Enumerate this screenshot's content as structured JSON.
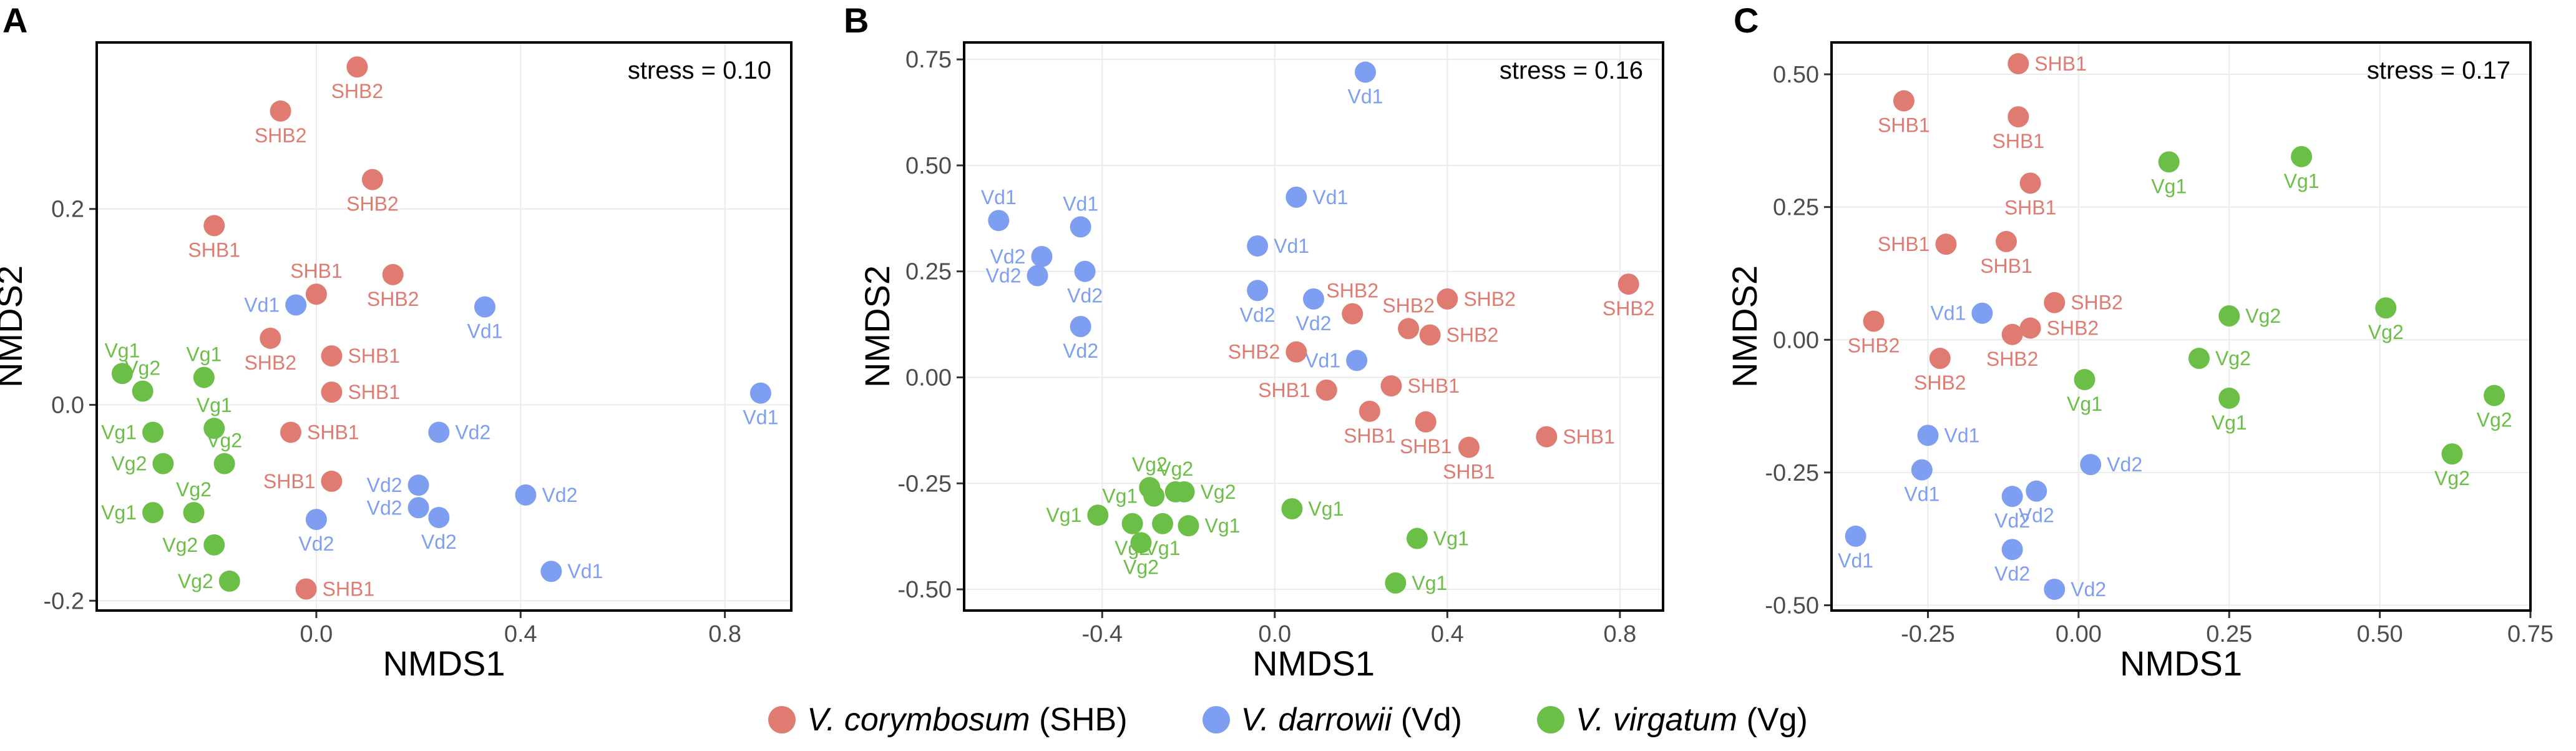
{
  "colors": {
    "SHB": "#E07B72",
    "Vd": "#7E9EF2",
    "Vg": "#6BBF47"
  },
  "legend": [
    {
      "key": "SHB",
      "species": "V. corymbosum",
      "code": "(SHB)"
    },
    {
      "key": "Vd",
      "species": "V. darrowii",
      "code": "(Vd)"
    },
    {
      "key": "Vg",
      "species": "V. virgatum",
      "code": "(Vg)"
    }
  ],
  "chart_data": [
    {
      "panel": "A",
      "type": "scatter",
      "title": "",
      "xlabel": "NMDS1",
      "ylabel": "NMDS2",
      "stress": "stress = 0.10",
      "xlim": [
        -0.43,
        0.93
      ],
      "ylim": [
        -0.21,
        0.37
      ],
      "xticks": [
        0.0,
        0.4,
        0.8
      ],
      "xtick_labels": [
        "0.0",
        "0.4",
        "0.8"
      ],
      "yticks": [
        -0.2,
        0.0,
        0.2
      ],
      "ytick_labels": [
        "-0.2",
        "0.0",
        "0.2"
      ],
      "points": [
        {
          "group": "SHB",
          "label": "SHB2",
          "x": 0.08,
          "y": 0.345,
          "lp": "below"
        },
        {
          "group": "SHB",
          "label": "SHB2",
          "x": -0.07,
          "y": 0.3,
          "lp": "below"
        },
        {
          "group": "SHB",
          "label": "SHB2",
          "x": 0.11,
          "y": 0.23,
          "lp": "below"
        },
        {
          "group": "SHB",
          "label": "SHB1",
          "x": -0.2,
          "y": 0.183,
          "lp": "below"
        },
        {
          "group": "SHB",
          "label": "SHB2",
          "x": 0.15,
          "y": 0.133,
          "lp": "below"
        },
        {
          "group": "SHB",
          "label": "SHB1",
          "x": 0.0,
          "y": 0.113,
          "lp": "above"
        },
        {
          "group": "SHB",
          "label": "SHB2",
          "x": -0.09,
          "y": 0.068,
          "lp": "below"
        },
        {
          "group": "SHB",
          "label": "SHB1",
          "x": 0.03,
          "y": 0.05,
          "lp": "right"
        },
        {
          "group": "SHB",
          "label": "SHB1",
          "x": 0.03,
          "y": 0.013,
          "lp": "right"
        },
        {
          "group": "SHB",
          "label": "SHB1",
          "x": -0.05,
          "y": -0.028,
          "lp": "right"
        },
        {
          "group": "SHB",
          "label": "SHB1",
          "x": 0.03,
          "y": -0.078,
          "lp": "left"
        },
        {
          "group": "SHB",
          "label": "SHB1",
          "x": -0.02,
          "y": -0.188,
          "lp": "right"
        },
        {
          "group": "Vd",
          "label": "Vd1",
          "x": -0.04,
          "y": 0.102,
          "lp": "left"
        },
        {
          "group": "Vd",
          "label": "Vd1",
          "x": 0.33,
          "y": 0.1,
          "lp": "below"
        },
        {
          "group": "Vd",
          "label": "Vd1",
          "x": 0.87,
          "y": 0.012,
          "lp": "below"
        },
        {
          "group": "Vd",
          "label": "Vd2",
          "x": 0.24,
          "y": -0.028,
          "lp": "right"
        },
        {
          "group": "Vd",
          "label": "Vd2",
          "x": 0.2,
          "y": -0.082,
          "lp": "left"
        },
        {
          "group": "Vd",
          "label": "Vd2",
          "x": 0.41,
          "y": -0.092,
          "lp": "right"
        },
        {
          "group": "Vd",
          "label": "Vd2",
          "x": 0.2,
          "y": -0.105,
          "lp": "left"
        },
        {
          "group": "Vd",
          "label": "Vd2",
          "x": 0.24,
          "y": -0.115,
          "lp": "below"
        },
        {
          "group": "Vd",
          "label": "Vd2",
          "x": 0.0,
          "y": -0.117,
          "lp": "below"
        },
        {
          "group": "Vd",
          "label": "Vd1",
          "x": 0.46,
          "y": -0.17,
          "lp": "right"
        },
        {
          "group": "Vg",
          "label": "Vg1",
          "x": -0.38,
          "y": 0.032,
          "lp": "above"
        },
        {
          "group": "Vg",
          "label": "Vg2",
          "x": -0.34,
          "y": 0.014,
          "lp": "above"
        },
        {
          "group": "Vg",
          "label": "Vg1",
          "x": -0.22,
          "y": 0.028,
          "lp": "above"
        },
        {
          "group": "Vg",
          "label": "Vg1",
          "x": -0.32,
          "y": -0.028,
          "lp": "left"
        },
        {
          "group": "Vg",
          "label": "Vg1",
          "x": -0.2,
          "y": -0.024,
          "lp": "above"
        },
        {
          "group": "Vg",
          "label": "Vg2",
          "x": -0.3,
          "y": -0.06,
          "lp": "left"
        },
        {
          "group": "Vg",
          "label": "Vg2",
          "x": -0.18,
          "y": -0.06,
          "lp": "above"
        },
        {
          "group": "Vg",
          "label": "Vg2",
          "x": -0.24,
          "y": -0.11,
          "lp": "above"
        },
        {
          "group": "Vg",
          "label": "Vg1",
          "x": -0.32,
          "y": -0.11,
          "lp": "left"
        },
        {
          "group": "Vg",
          "label": "Vg2",
          "x": -0.2,
          "y": -0.143,
          "lp": "left"
        },
        {
          "group": "Vg",
          "label": "Vg2",
          "x": -0.17,
          "y": -0.18,
          "lp": "left"
        }
      ]
    },
    {
      "panel": "B",
      "type": "scatter",
      "title": "",
      "xlabel": "NMDS1",
      "ylabel": "NMDS2",
      "stress": "stress = 0.16",
      "xlim": [
        -0.72,
        0.9
      ],
      "ylim": [
        -0.55,
        0.79
      ],
      "xticks": [
        -0.4,
        0.0,
        0.4,
        0.8
      ],
      "xtick_labels": [
        "-0.4",
        "0.0",
        "0.4",
        "0.8"
      ],
      "yticks": [
        -0.5,
        -0.25,
        0.0,
        0.25,
        0.5,
        0.75
      ],
      "ytick_labels": [
        "-0.50",
        "-0.25",
        "0.00",
        "0.25",
        "0.50",
        "0.75"
      ],
      "points": [
        {
          "group": "Vd",
          "label": "Vd1",
          "x": 0.21,
          "y": 0.72,
          "lp": "below"
        },
        {
          "group": "Vd",
          "label": "Vd1",
          "x": -0.64,
          "y": 0.37,
          "lp": "above"
        },
        {
          "group": "Vd",
          "label": "Vd1",
          "x": -0.45,
          "y": 0.355,
          "lp": "above"
        },
        {
          "group": "Vd",
          "label": "Vd1",
          "x": 0.05,
          "y": 0.425,
          "lp": "right"
        },
        {
          "group": "Vd",
          "label": "Vd1",
          "x": -0.04,
          "y": 0.31,
          "lp": "right"
        },
        {
          "group": "Vd",
          "label": "Vd2",
          "x": -0.54,
          "y": 0.285,
          "lp": "left"
        },
        {
          "group": "Vd",
          "label": "Vd2",
          "x": -0.55,
          "y": 0.24,
          "lp": "left"
        },
        {
          "group": "Vd",
          "label": "Vd2",
          "x": -0.44,
          "y": 0.25,
          "lp": "below"
        },
        {
          "group": "Vd",
          "label": "Vd2",
          "x": -0.04,
          "y": 0.205,
          "lp": "below"
        },
        {
          "group": "Vd",
          "label": "Vd2",
          "x": 0.09,
          "y": 0.185,
          "lp": "below"
        },
        {
          "group": "Vd",
          "label": "Vd2",
          "x": -0.45,
          "y": 0.12,
          "lp": "below"
        },
        {
          "group": "Vd",
          "label": "Vd1",
          "x": 0.19,
          "y": 0.04,
          "lp": "left"
        },
        {
          "group": "SHB",
          "label": "SHB2",
          "x": 0.82,
          "y": 0.22,
          "lp": "below"
        },
        {
          "group": "SHB",
          "label": "SHB2",
          "x": 0.18,
          "y": 0.15,
          "lp": "above"
        },
        {
          "group": "SHB",
          "label": "SHB2",
          "x": 0.4,
          "y": 0.185,
          "lp": "right"
        },
        {
          "group": "SHB",
          "label": "SHB2",
          "x": 0.31,
          "y": 0.115,
          "lp": "above"
        },
        {
          "group": "SHB",
          "label": "SHB2",
          "x": 0.36,
          "y": 0.1,
          "lp": "right"
        },
        {
          "group": "SHB",
          "label": "SHB2",
          "x": 0.05,
          "y": 0.06,
          "lp": "left"
        },
        {
          "group": "SHB",
          "label": "SHB1",
          "x": 0.12,
          "y": -0.03,
          "lp": "left"
        },
        {
          "group": "SHB",
          "label": "SHB1",
          "x": 0.27,
          "y": -0.02,
          "lp": "right"
        },
        {
          "group": "SHB",
          "label": "SHB1",
          "x": 0.22,
          "y": -0.08,
          "lp": "below"
        },
        {
          "group": "SHB",
          "label": "SHB1",
          "x": 0.35,
          "y": -0.105,
          "lp": "below"
        },
        {
          "group": "SHB",
          "label": "SHB1",
          "x": 0.45,
          "y": -0.165,
          "lp": "below"
        },
        {
          "group": "SHB",
          "label": "SHB1",
          "x": 0.63,
          "y": -0.14,
          "lp": "right"
        },
        {
          "group": "Vg",
          "label": "Vg2",
          "x": -0.29,
          "y": -0.26,
          "lp": "above"
        },
        {
          "group": "Vg",
          "label": "Vg2",
          "x": -0.21,
          "y": -0.27,
          "lp": "right"
        },
        {
          "group": "Vg",
          "label": "Vg2",
          "x": -0.23,
          "y": -0.27,
          "lp": "above"
        },
        {
          "group": "Vg",
          "label": "Vg1",
          "x": -0.28,
          "y": -0.28,
          "lp": "left"
        },
        {
          "group": "Vg",
          "label": "Vg1",
          "x": -0.41,
          "y": -0.325,
          "lp": "left"
        },
        {
          "group": "Vg",
          "label": "Vg2",
          "x": -0.33,
          "y": -0.345,
          "lp": "below"
        },
        {
          "group": "Vg",
          "label": "Vg1",
          "x": -0.26,
          "y": -0.345,
          "lp": "below"
        },
        {
          "group": "Vg",
          "label": "Vg1",
          "x": -0.2,
          "y": -0.35,
          "lp": "right"
        },
        {
          "group": "Vg",
          "label": "Vg2",
          "x": -0.31,
          "y": -0.39,
          "lp": "below"
        },
        {
          "group": "Vg",
          "label": "Vg1",
          "x": 0.04,
          "y": -0.31,
          "lp": "right"
        },
        {
          "group": "Vg",
          "label": "Vg1",
          "x": 0.33,
          "y": -0.38,
          "lp": "right"
        },
        {
          "group": "Vg",
          "label": "Vg1",
          "x": 0.28,
          "y": -0.485,
          "lp": "right"
        }
      ]
    },
    {
      "panel": "C",
      "type": "scatter",
      "title": "",
      "xlabel": "NMDS1",
      "ylabel": "NMDS2",
      "stress": "stress = 0.17",
      "xlim": [
        -0.41,
        0.75
      ],
      "ylim": [
        -0.51,
        0.56
      ],
      "xticks": [
        -0.25,
        0.0,
        0.25,
        0.5,
        0.75
      ],
      "xtick_labels": [
        "-0.25",
        "0.00",
        "0.25",
        "0.50",
        "0.75"
      ],
      "yticks": [
        -0.5,
        -0.25,
        0.0,
        0.25,
        0.5
      ],
      "ytick_labels": [
        "-0.50",
        "-0.25",
        "0.00",
        "0.25",
        "0.50"
      ],
      "points": [
        {
          "group": "SHB",
          "label": "SHB1",
          "x": -0.1,
          "y": 0.52,
          "lp": "right"
        },
        {
          "group": "SHB",
          "label": "SHB1",
          "x": -0.29,
          "y": 0.45,
          "lp": "below"
        },
        {
          "group": "SHB",
          "label": "SHB1",
          "x": -0.1,
          "y": 0.42,
          "lp": "below"
        },
        {
          "group": "SHB",
          "label": "SHB1",
          "x": -0.08,
          "y": 0.295,
          "lp": "below"
        },
        {
          "group": "SHB",
          "label": "SHB1",
          "x": -0.22,
          "y": 0.18,
          "lp": "left"
        },
        {
          "group": "SHB",
          "label": "SHB1",
          "x": -0.12,
          "y": 0.185,
          "lp": "below"
        },
        {
          "group": "SHB",
          "label": "SHB2",
          "x": -0.04,
          "y": 0.07,
          "lp": "right"
        },
        {
          "group": "SHB",
          "label": "SHB2",
          "x": -0.34,
          "y": 0.035,
          "lp": "below"
        },
        {
          "group": "SHB",
          "label": "SHB2",
          "x": -0.08,
          "y": 0.022,
          "lp": "right"
        },
        {
          "group": "SHB",
          "label": "SHB2",
          "x": -0.11,
          "y": 0.01,
          "lp": "below"
        },
        {
          "group": "SHB",
          "label": "SHB2",
          "x": -0.23,
          "y": -0.035,
          "lp": "below"
        },
        {
          "group": "Vg",
          "label": "Vg1",
          "x": 0.15,
          "y": 0.335,
          "lp": "below"
        },
        {
          "group": "Vg",
          "label": "Vg1",
          "x": 0.37,
          "y": 0.345,
          "lp": "below"
        },
        {
          "group": "Vg",
          "label": "Vg2",
          "x": 0.25,
          "y": 0.045,
          "lp": "right"
        },
        {
          "group": "Vg",
          "label": "Vg2",
          "x": 0.51,
          "y": 0.06,
          "lp": "below"
        },
        {
          "group": "Vg",
          "label": "Vg2",
          "x": 0.2,
          "y": -0.035,
          "lp": "right"
        },
        {
          "group": "Vg",
          "label": "Vg1",
          "x": 0.01,
          "y": -0.075,
          "lp": "below"
        },
        {
          "group": "Vg",
          "label": "Vg1",
          "x": 0.25,
          "y": -0.11,
          "lp": "below"
        },
        {
          "group": "Vg",
          "label": "Vg2",
          "x": 0.69,
          "y": -0.105,
          "lp": "below"
        },
        {
          "group": "Vg",
          "label": "Vg2",
          "x": 0.62,
          "y": -0.215,
          "lp": "below"
        },
        {
          "group": "Vd",
          "label": "Vd1",
          "x": -0.16,
          "y": 0.05,
          "lp": "left"
        },
        {
          "group": "Vd",
          "label": "Vd1",
          "x": -0.25,
          "y": -0.18,
          "lp": "right"
        },
        {
          "group": "Vd",
          "label": "Vd1",
          "x": -0.26,
          "y": -0.245,
          "lp": "below"
        },
        {
          "group": "Vd",
          "label": "Vd2",
          "x": 0.02,
          "y": -0.235,
          "lp": "right"
        },
        {
          "group": "Vd",
          "label": "Vd2",
          "x": -0.11,
          "y": -0.295,
          "lp": "below"
        },
        {
          "group": "Vd",
          "label": "Vd2",
          "x": -0.07,
          "y": -0.285,
          "lp": "below"
        },
        {
          "group": "Vd",
          "label": "Vd1",
          "x": -0.37,
          "y": -0.37,
          "lp": "below"
        },
        {
          "group": "Vd",
          "label": "Vd2",
          "x": -0.11,
          "y": -0.395,
          "lp": "below"
        },
        {
          "group": "Vd",
          "label": "Vd2",
          "x": -0.04,
          "y": -0.47,
          "lp": "right"
        }
      ]
    }
  ]
}
